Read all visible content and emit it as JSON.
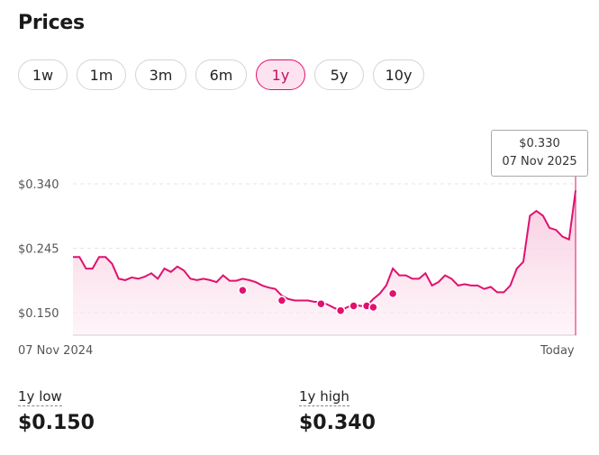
{
  "title": "Prices",
  "ranges": [
    {
      "label": "1w",
      "active": false
    },
    {
      "label": "1m",
      "active": false
    },
    {
      "label": "3m",
      "active": false
    },
    {
      "label": "6m",
      "active": false
    },
    {
      "label": "1y",
      "active": true
    },
    {
      "label": "5y",
      "active": false
    },
    {
      "label": "10y",
      "active": false
    }
  ],
  "colors": {
    "accent": "#e0116f",
    "fill": "#f7c7dc",
    "grid": "#e4e4e4"
  },
  "tooltip": {
    "price": "$0.330",
    "date": "07 Nov 2025"
  },
  "chart_data": {
    "type": "area",
    "y_ticks": [
      "$0.340",
      "$0.245",
      "$0.150"
    ],
    "y_tick_values": [
      0.34,
      0.245,
      0.15
    ],
    "ylim": [
      0.12,
      0.345
    ],
    "x_labels": [
      "07 Nov 2024",
      "Today"
    ],
    "grid": true,
    "series": [
      {
        "values": [
          0.232,
          0.232,
          0.215,
          0.215,
          0.232,
          0.232,
          0.222,
          0.2,
          0.198,
          0.202,
          0.2,
          0.203,
          0.208,
          0.2,
          0.215,
          0.21,
          0.218,
          0.212,
          0.2,
          0.198,
          0.2,
          0.198,
          0.195,
          0.205,
          0.197,
          0.197,
          0.2,
          0.198,
          0.195,
          0.19,
          0.187,
          0.185,
          0.175,
          0.17,
          0.168,
          0.168,
          0.168,
          0.166,
          0.166,
          0.162,
          0.157,
          0.153,
          0.158,
          0.162,
          0.16,
          0.16,
          0.17,
          0.178,
          0.19,
          0.215,
          0.205,
          0.205,
          0.2,
          0.2,
          0.208,
          0.19,
          0.195,
          0.205,
          0.2,
          0.19,
          0.192,
          0.19,
          0.19,
          0.185,
          0.188,
          0.18,
          0.18,
          0.19,
          0.215,
          0.225,
          0.293,
          0.3,
          0.293,
          0.275,
          0.272,
          0.262,
          0.258,
          0.33
        ],
        "markers": [
          0.183,
          0.168,
          0.163,
          0.153,
          0.16,
          0.16,
          0.158,
          0.178
        ]
      }
    ]
  },
  "stats": [
    {
      "label": "1y low",
      "value": "$0.150"
    },
    {
      "label": "1y high",
      "value": "$0.340"
    }
  ]
}
